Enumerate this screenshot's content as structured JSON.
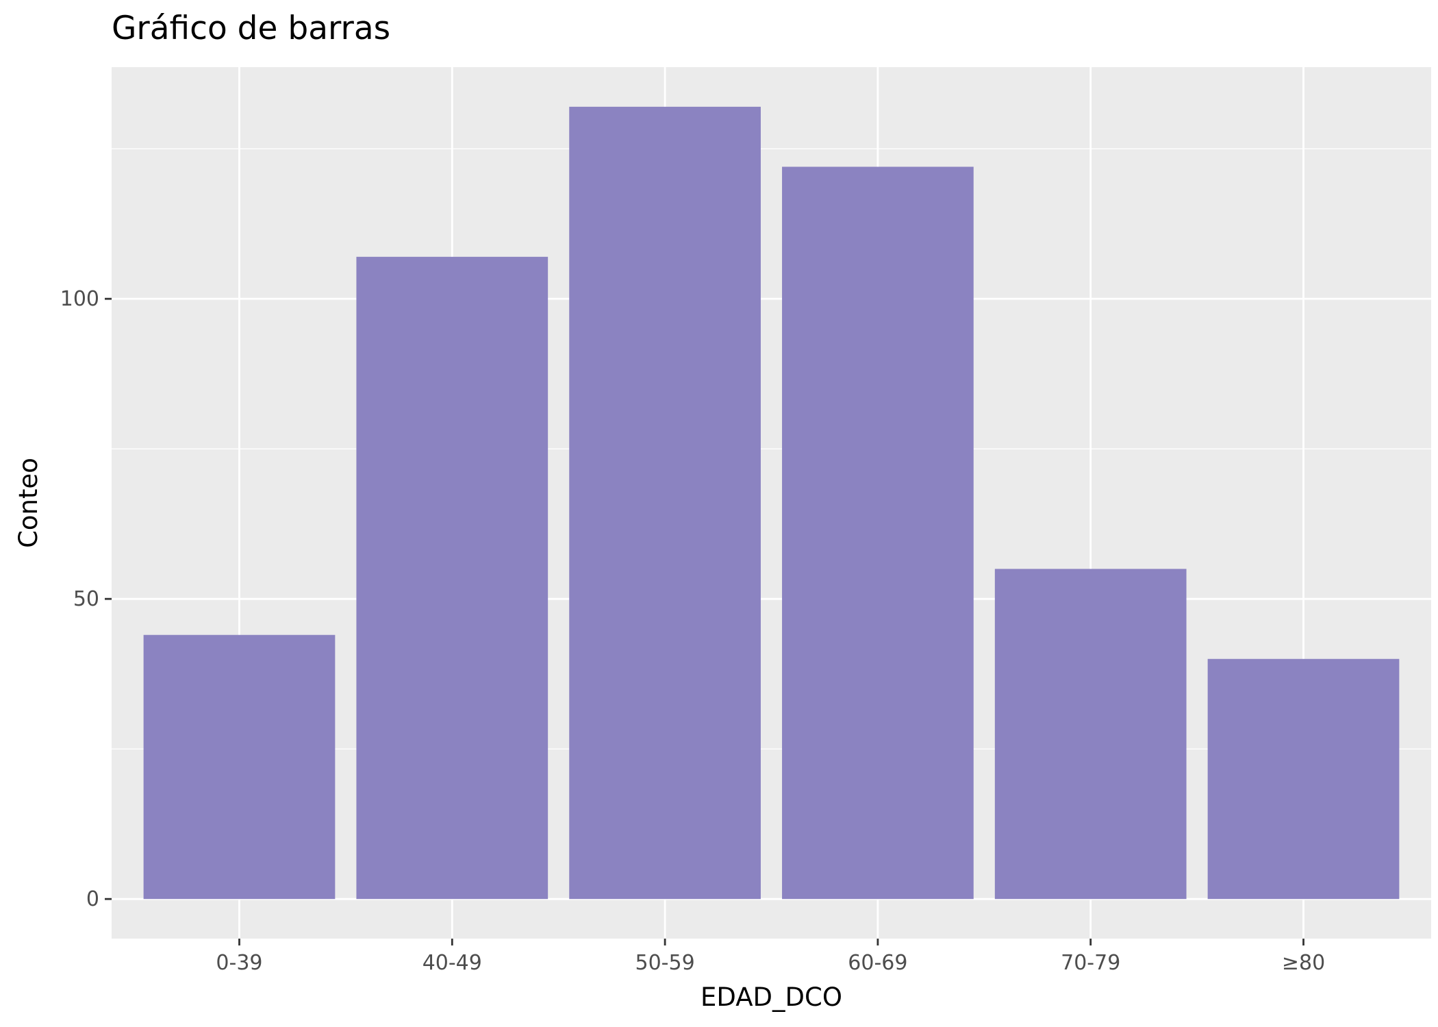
{
  "chart_data": {
    "type": "bar",
    "title": "Gráfico de barras",
    "xlabel": "EDAD_DCO",
    "ylabel": "Conteo",
    "categories": [
      "0-39",
      "40-49",
      "50-59",
      "60-69",
      "70-79",
      "≥80"
    ],
    "values": [
      44,
      107,
      132,
      122,
      55,
      40
    ],
    "ylim": [
      -6.6,
      138.6
    ],
    "yticks": [
      0,
      50,
      100
    ],
    "yticks_minor": [
      25,
      75,
      125
    ],
    "ytick_labels": [
      "0",
      "50",
      "100"
    ],
    "grid": true,
    "bar_color": "#8b83c1",
    "panel_background": "#ebebeb",
    "grid_color": "#ffffff"
  }
}
